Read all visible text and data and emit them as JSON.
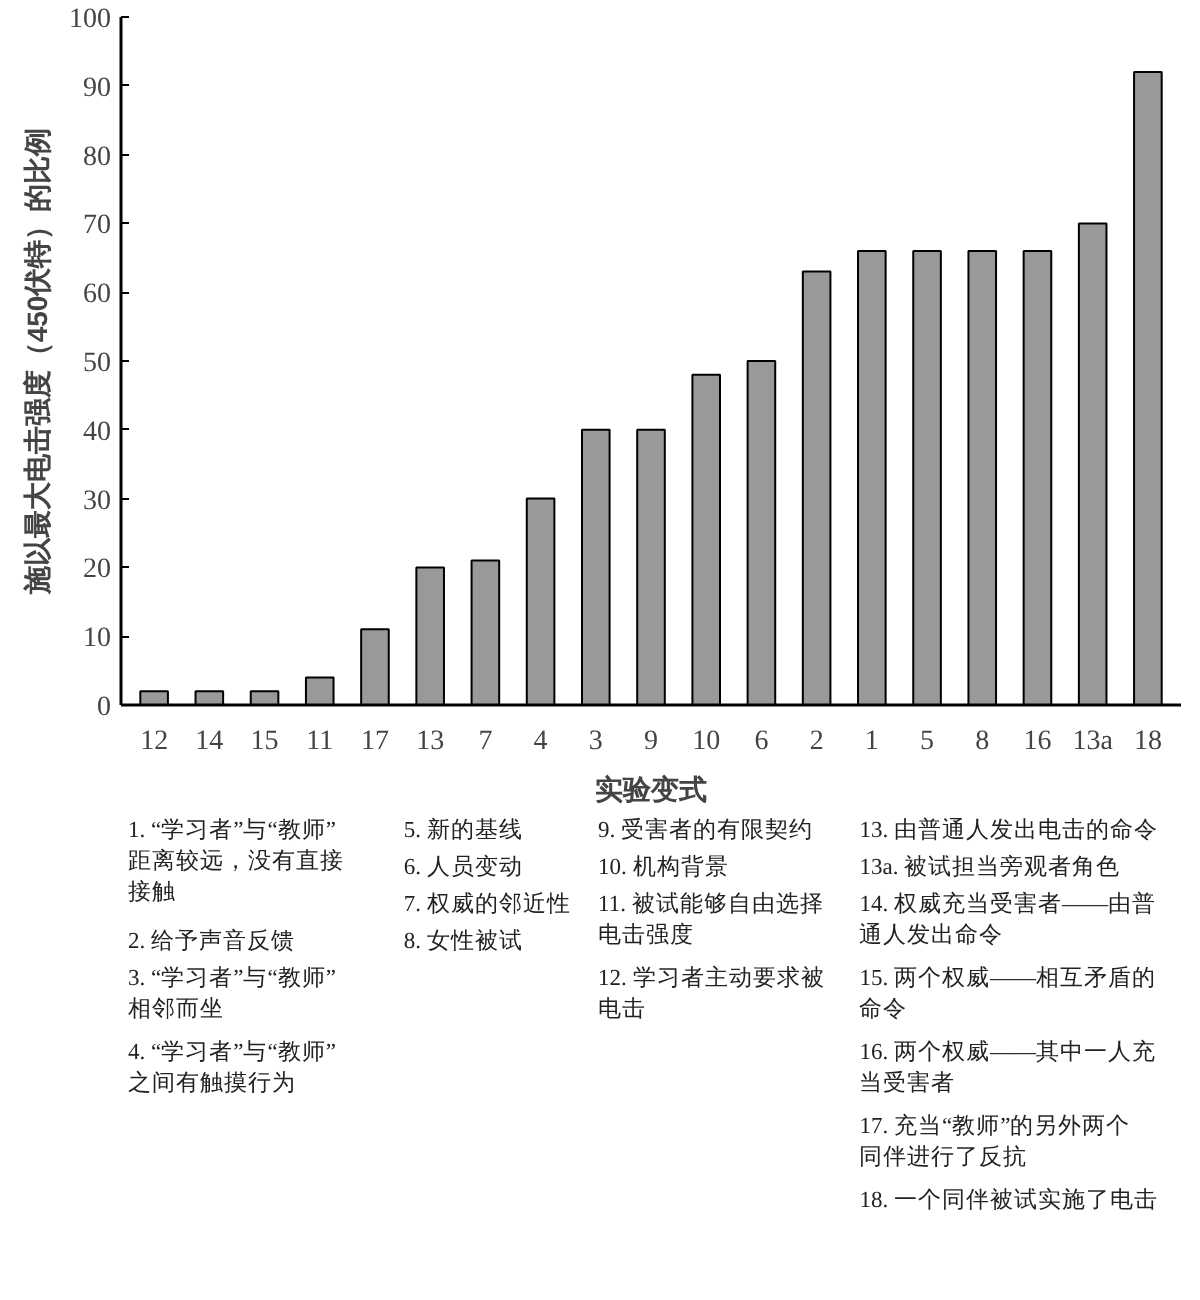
{
  "chart_data": {
    "type": "bar",
    "xlabel": "实验变式",
    "ylabel": "施以最大电击强度（450伏特）的比例",
    "categories": [
      "12",
      "14",
      "15",
      "11",
      "17",
      "13",
      "7",
      "4",
      "3",
      "9",
      "10",
      "6",
      "2",
      "1",
      "5",
      "8",
      "16",
      "13a",
      "18"
    ],
    "values": [
      2,
      2,
      2,
      4,
      11,
      20,
      21,
      30,
      40,
      40,
      48,
      50,
      63,
      66,
      66,
      66,
      66,
      70,
      92
    ],
    "color": "#999999",
    "ylim": [
      0,
      100
    ],
    "yticks": [
      0,
      10,
      20,
      30,
      40,
      50,
      60,
      70,
      80,
      90,
      100
    ],
    "annotations": [
      "1. “学习者”与“教师”距离较远，没有直接接触",
      "2. 给予声音反馈",
      "3. “学习者”与“教师”相邻而坐",
      "4. “学习者”与“教师”之间有触摸行为",
      "5. 新的基线",
      "6. 人员变动",
      "7. 权威的邻近性",
      "8. 女性被试",
      "9. 受害者的有限契约",
      "10. 机构背景",
      "11. 被试能够自由选择电击强度",
      "12. 学习者主动要求被电击",
      "13. 由普通人发出电击的命令",
      "13a. 被试担当旁观者角色",
      "14. 权威充当受害者——由普通人发出命令",
      "15. 两个权威——相互矛盾的命令",
      "16. 两个权威——其中一人充当受害者",
      "17. 充当“教师”的另外两个同伴进行了反抗",
      "18. 一个同伴被试实施了电击"
    ]
  }
}
